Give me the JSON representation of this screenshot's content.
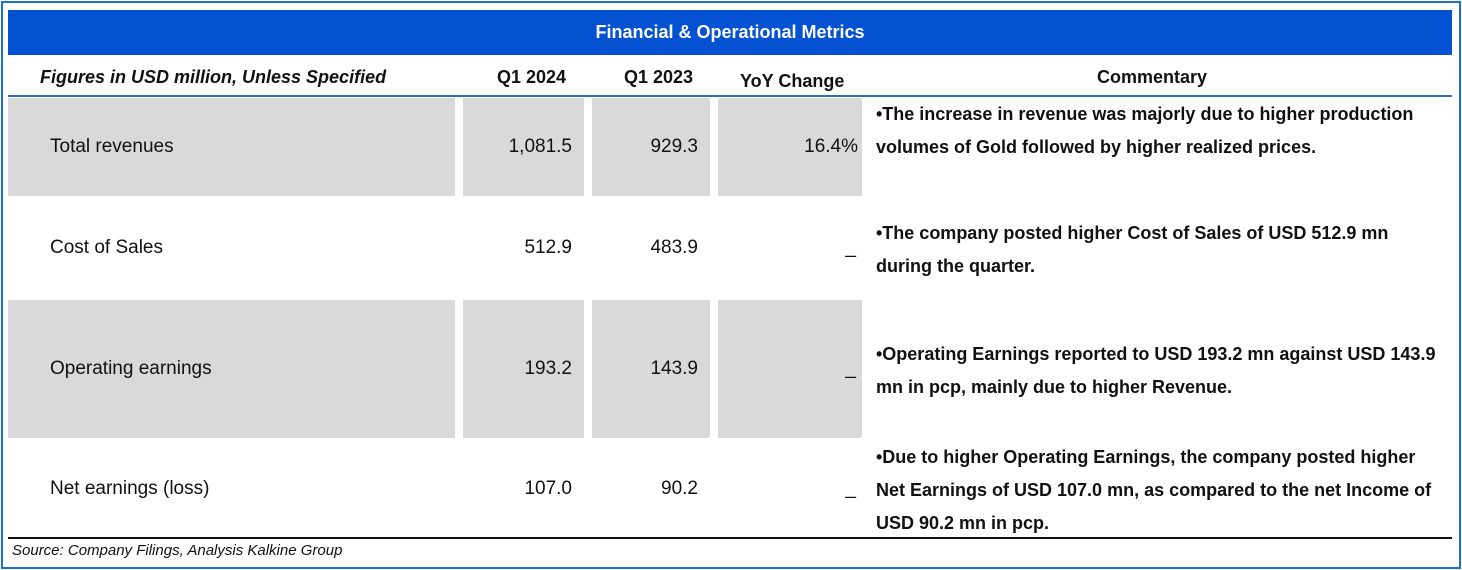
{
  "title": "Financial & Operational Metrics",
  "headers": {
    "label": "Figures in USD million, Unless Specified",
    "q1_2024": "Q1 2024",
    "q1_2023": "Q1 2023",
    "yoy": "YoY Change",
    "commentary": "Commentary"
  },
  "rows": [
    {
      "label": "Total revenues",
      "q1_2024": "1,081.5",
      "q1_2023": "929.3",
      "yoy": "16.4%",
      "commentary": "•The increase in revenue was majorly due to higher production volumes of Gold  followed  by higher realized prices."
    },
    {
      "label": "Cost of Sales",
      "q1_2024": "512.9",
      "q1_2023": "483.9",
      "yoy": "_",
      "commentary": "•The company posted higher Cost of Sales of USD 512.9 mn  during the quarter."
    },
    {
      "label": "Operating earnings",
      "q1_2024": "193.2",
      "q1_2023": "143.9",
      "yoy": "_",
      "commentary": "•Operating Earnings reported to USD 193.2 mn against USD 143.9 mn in pcp, mainly due to higher Revenue."
    },
    {
      "label": "Net earnings (loss)",
      "q1_2024": "107.0",
      "q1_2023": "90.2",
      "yoy": "_",
      "commentary": "•Due to higher Operating Earnings, the company posted higher Net Earnings of USD 107.0 mn, as compared to the net Income of USD 90.2 mn in pcp."
    }
  ],
  "source": "Source: Company Filings, Analysis Kalkine Group",
  "colors": {
    "title_bg": "#0452d1",
    "row_shade": "#d9d9d9"
  }
}
